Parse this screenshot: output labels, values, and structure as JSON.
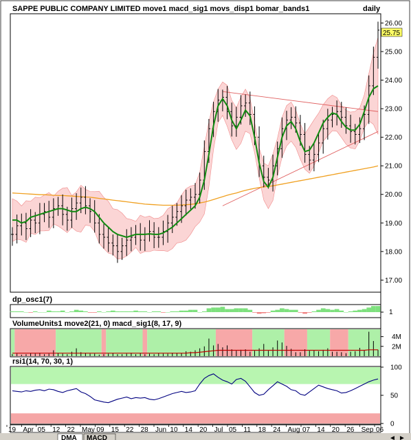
{
  "chart_data": {
    "type": "line",
    "main": {
      "title": "SAPPE PUBLIC COMPANY LIMITED move1 macd_sig1 movs_disp1 bomar_bands1",
      "period": "daily",
      "last_price": "25.75",
      "ylim": [
        16.6,
        26.3
      ],
      "yticks": [
        "17.00",
        "18.00",
        "19.00",
        "20.00",
        "21.00",
        "22.00",
        "23.00",
        "24.00",
        "25.00",
        "26.00"
      ],
      "series": [
        {
          "values": [
            18.6,
            18.9,
            19.0,
            18.8,
            19.1,
            19.0,
            19.3,
            19.4,
            19.2,
            19.5,
            19.6,
            19.3,
            19.1,
            19.5,
            19.7,
            19.9,
            19.6,
            19.4,
            19.0,
            18.6,
            18.5,
            18.3,
            18.2,
            18.0,
            18.2,
            18.4,
            18.5,
            18.6,
            18.4,
            18.6,
            18.7,
            18.5,
            18.5,
            18.7,
            19.0,
            19.2,
            19.4,
            19.6,
            19.8,
            19.9,
            20.0,
            20.5,
            21.5,
            22.3,
            22.9,
            23.3,
            23.4,
            22.9,
            22.4,
            22.7,
            23.1,
            23.2,
            22.8,
            22.0,
            21.0,
            20.6,
            20.5,
            21.0,
            21.6,
            22.3,
            22.6,
            22.7,
            22.5,
            22.1,
            21.4,
            21.2,
            21.4,
            21.8,
            22.3,
            22.6,
            22.8,
            22.9,
            22.7,
            22.4,
            22.2,
            22.1,
            22.3,
            22.8,
            23.8,
            24.8,
            25.75
          ]
        },
        {
          "values": [
            19.1,
            19.1,
            19.0,
            19.05,
            19.2,
            19.25,
            19.3,
            19.35,
            19.4,
            19.45,
            19.5,
            19.5,
            19.45,
            19.4,
            19.4,
            19.5,
            19.55,
            19.5,
            19.4,
            19.2,
            19.0,
            18.85,
            18.7,
            18.6,
            18.55,
            18.5,
            18.55,
            18.6,
            18.6,
            18.6,
            18.62,
            18.6,
            18.6,
            18.65,
            18.75,
            18.85,
            19.0,
            19.15,
            19.3,
            19.45,
            19.6,
            19.9,
            20.5,
            21.4,
            22.4,
            23.1,
            23.35,
            23.1,
            22.6,
            22.3,
            22.6,
            22.95,
            22.75,
            22.0,
            21.1,
            20.45,
            20.25,
            20.6,
            21.3,
            22.0,
            22.4,
            22.55,
            22.3,
            21.85,
            21.5,
            21.55,
            21.8,
            22.15,
            22.5,
            22.7,
            22.85,
            22.8,
            22.55,
            22.35,
            22.25,
            22.25,
            22.45,
            22.9,
            23.4,
            23.7,
            23.8
          ]
        },
        {
          "values": [
            20.05,
            20.04,
            20.03,
            20.02,
            20.01,
            20.0,
            19.99,
            19.99,
            19.98,
            19.97,
            19.96,
            19.96,
            19.95,
            19.94,
            19.93,
            19.92,
            19.91,
            19.9,
            19.88,
            19.86,
            19.84,
            19.82,
            19.8,
            19.78,
            19.76,
            19.74,
            19.72,
            19.7,
            19.68,
            19.66,
            19.65,
            19.64,
            19.63,
            19.62,
            19.62,
            19.62,
            19.62,
            19.63,
            19.64,
            19.65,
            19.67,
            19.7,
            19.73,
            19.77,
            19.82,
            19.87,
            19.92,
            19.97,
            20.01,
            20.05,
            20.1,
            20.14,
            20.18,
            20.21,
            20.24,
            20.26,
            20.28,
            20.3,
            20.33,
            20.36,
            20.39,
            20.42,
            20.45,
            20.48,
            20.51,
            20.54,
            20.57,
            20.6,
            20.63,
            20.66,
            20.69,
            20.72,
            20.75,
            20.78,
            20.81,
            20.84,
            20.87,
            20.9,
            20.93,
            20.96,
            21.0
          ]
        },
        {
          "values": [
            20.0,
            20.0,
            20.0,
            20.0,
            20.0,
            20.0,
            20.0,
            20.0,
            20.0,
            20.0,
            20.0,
            20.0,
            20.0,
            20.0,
            20.0,
            20.0,
            20.0,
            20.0,
            20.0,
            20.0,
            20.0,
            20.0,
            20.0,
            20.0,
            20.0,
            20.0,
            20.0,
            20.0,
            20.0,
            20.0,
            20.0,
            20.0,
            20.0,
            20.0,
            20.0,
            20.0,
            20.0,
            20.0,
            20.0,
            20.0,
            20.0,
            20.0,
            20.0,
            20.0,
            20.0,
            20.0,
            20.0,
            20.0,
            20.0,
            20.0,
            20.0,
            20.0,
            20.0,
            20.0,
            20.0,
            20.0,
            20.0,
            20.0,
            20.0,
            20.0,
            20.0,
            20.0,
            20.0,
            20.0,
            20.0,
            20.0,
            20.0,
            20.0,
            20.0,
            20.0,
            20.0,
            20.0,
            20.0,
            20.0,
            20.0,
            20.0,
            20.0,
            20.0,
            20.0,
            20.0,
            20.0
          ]
        }
      ],
      "trendlines": [
        {
          "x": [
            46,
            80
          ],
          "y": [
            23.6,
            22.9
          ]
        },
        {
          "x": [
            46,
            80
          ],
          "y": [
            19.6,
            22.2
          ]
        }
      ]
    },
    "osc": {
      "label": "dp_osc1(7)",
      "ylabel": "1",
      "values": [
        0.1,
        0.1,
        0.1,
        0.0,
        -0.1,
        0.1,
        0.0,
        0.0,
        0.2,
        0.1,
        0.1,
        0.2,
        0.0,
        0.1,
        0.3,
        0.2,
        0.1,
        -0.1,
        -0.1,
        0.1,
        0.0,
        0.1,
        0.2,
        0.1,
        0.1,
        0.1,
        0.1,
        0.2,
        0.1,
        0.1,
        0.0,
        0.1,
        0.1,
        -0.1,
        0.0,
        0.1,
        0.1,
        0.2,
        0.2,
        0.3,
        0.3,
        0.0,
        0.1,
        0.5,
        0.6,
        0.6,
        0.7,
        0.4,
        0.4,
        0.5,
        0.5,
        0.5,
        0.3,
        -0.1,
        -0.3,
        -0.2,
        -0.1,
        0.2,
        0.3,
        0.5,
        0.4,
        0.3,
        0.3,
        -0.1,
        -0.3,
        -0.1,
        0.1,
        0.3,
        0.5,
        0.4,
        0.3,
        0.4,
        0.2,
        0.0,
        0.1,
        0.2,
        0.3,
        0.4,
        0.6,
        0.8,
        0.8
      ]
    },
    "volume": {
      "label": "VolumeUnits1 move2(21, 0) macd_sig1(8, 17, 9)",
      "yticks": [
        "4M",
        "2M"
      ],
      "ylim": [
        0,
        5.5
      ],
      "zones": [
        {
          "from": 0,
          "to": 1,
          "color": "#aef0a8"
        },
        {
          "from": 1,
          "to": 10,
          "color": "#f7a8a8"
        },
        {
          "from": 10,
          "to": 20,
          "color": "#aef0a8"
        },
        {
          "from": 20,
          "to": 21,
          "color": "#f7a8a8"
        },
        {
          "from": 21,
          "to": 29,
          "color": "#aef0a8"
        },
        {
          "from": 29,
          "to": 30,
          "color": "#f7a8a8"
        },
        {
          "from": 30,
          "to": 45,
          "color": "#aef0a8"
        },
        {
          "from": 45,
          "to": 53,
          "color": "#f7a8a8"
        },
        {
          "from": 53,
          "to": 60,
          "color": "#aef0a8"
        },
        {
          "from": 60,
          "to": 65,
          "color": "#f7a8a8"
        },
        {
          "from": 65,
          "to": 70,
          "color": "#aef0a8"
        },
        {
          "from": 70,
          "to": 74,
          "color": "#f7a8a8"
        },
        {
          "from": 74,
          "to": 81,
          "color": "#aef0a8"
        }
      ],
      "values": [
        0.4,
        0.5,
        0.3,
        0.4,
        0.6,
        0.5,
        0.7,
        0.4,
        0.5,
        1.2,
        0.6,
        0.5,
        0.4,
        0.9,
        1.6,
        0.8,
        0.6,
        0.5,
        0.5,
        0.3,
        0.4,
        0.5,
        0.6,
        0.4,
        0.4,
        0.5,
        0.7,
        0.4,
        0.6,
        0.4,
        0.5,
        0.4,
        0.6,
        0.5,
        0.5,
        0.7,
        0.6,
        0.6,
        1.0,
        0.9,
        1.2,
        1.6,
        2.0,
        3.6,
        2.2,
        2.5,
        1.8,
        2.2,
        1.4,
        1.1,
        1.3,
        1.4,
        0.9,
        1.1,
        1.6,
        2.5,
        1.1,
        1.8,
        3.2,
        2.8,
        2.1,
        1.5,
        0.8,
        0.8,
        1.4,
        1.1,
        1.2,
        1.0,
        1.3,
        1.6,
        0.9,
        0.9,
        0.8,
        0.6,
        0.9,
        1.0,
        1.7,
        1.2,
        5.0,
        3.1,
        1.3
      ],
      "moving_average": [
        0.6,
        0.6,
        0.6,
        0.6,
        0.6,
        0.6,
        0.6,
        0.6,
        0.6,
        0.6,
        0.6,
        0.6,
        0.6,
        0.6,
        0.6,
        0.6,
        0.6,
        0.6,
        0.6,
        0.6,
        0.6,
        0.6,
        0.6,
        0.6,
        0.6,
        0.6,
        0.6,
        0.6,
        0.6,
        0.6,
        0.6,
        0.6,
        0.6,
        0.6,
        0.6,
        0.6,
        0.6,
        0.6,
        0.6,
        0.7,
        0.7,
        0.8,
        0.9,
        1.0,
        1.1,
        1.2,
        1.2,
        1.2,
        1.2,
        1.2,
        1.2,
        1.2,
        1.2,
        1.2,
        1.2,
        1.2,
        1.2,
        1.2,
        1.2,
        1.2,
        1.2,
        1.2,
        1.2,
        1.2,
        1.2,
        1.2,
        1.2,
        1.2,
        1.2,
        1.2,
        1.2,
        1.2,
        1.2,
        1.2,
        1.2,
        1.2,
        1.2,
        1.2,
        1.3,
        1.3,
        1.3
      ]
    },
    "rsi": {
      "label": "rsi1(14, 70, 30, 1)",
      "yticks": [
        "100",
        "50",
        "0"
      ],
      "ylim": [
        0,
        100
      ],
      "overbought": 70,
      "oversold": 30,
      "values": [
        58,
        57,
        56,
        58,
        57,
        59,
        60,
        58,
        61,
        60,
        57,
        55,
        58,
        60,
        62,
        56,
        53,
        48,
        42,
        40,
        38,
        37,
        40,
        43,
        45,
        47,
        44,
        46,
        45,
        46,
        43,
        42,
        44,
        47,
        50,
        53,
        55,
        57,
        55,
        56,
        58,
        70,
        80,
        85,
        88,
        82,
        77,
        74,
        70,
        78,
        80,
        75,
        65,
        55,
        50,
        52,
        60,
        67,
        74,
        70,
        66,
        60,
        58,
        52,
        50,
        56,
        62,
        68,
        65,
        62,
        60,
        58,
        54,
        55,
        58,
        62,
        66,
        70,
        74,
        77,
        79
      ]
    },
    "xaxis": {
      "labels": [
        "19",
        "Apr",
        "05",
        "12",
        "22",
        "May",
        "09",
        "15",
        "22",
        "28",
        "Jun",
        "10",
        "14",
        "20",
        "Jul",
        "05",
        "11",
        "18",
        "24",
        "Aug",
        "07",
        "14",
        "20",
        "26",
        "Sep",
        "06"
      ]
    },
    "tabs": [
      "DMA",
      "MACD"
    ]
  }
}
